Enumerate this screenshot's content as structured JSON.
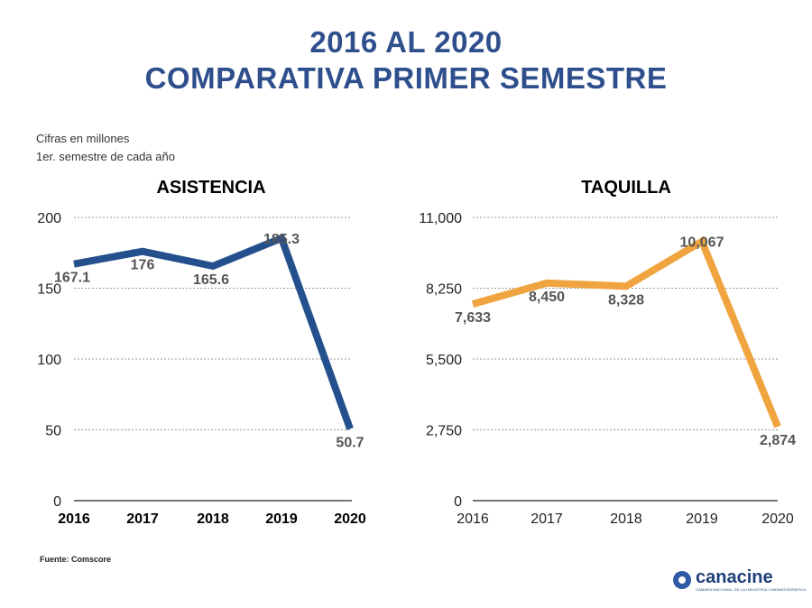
{
  "header": {
    "title_line1": "2016 AL 2020",
    "title_line2": "COMPARATIVA PRIMER SEMESTRE"
  },
  "notes": {
    "line1": "Cifras en millones",
    "line2": "1er. semestre de cada año"
  },
  "footer": {
    "source": "Fuente: Comscore",
    "logo_text": "canacine",
    "logo_subtext": "CÁMARA NACIONAL DE LA INDUSTRIA CINEMATOGRÁFICA"
  },
  "colors": {
    "title": "#2e4f8c",
    "asistencia_line": "#24508e",
    "taquilla_line": "#f0a440",
    "grid": "#999999"
  },
  "chart_data": [
    {
      "type": "line",
      "title": "ASISTENCIA",
      "categories": [
        "2016",
        "2017",
        "2018",
        "2019",
        "2020"
      ],
      "values": [
        167.1,
        176,
        165.6,
        185.3,
        50.7
      ],
      "value_labels": [
        "167.1",
        "176",
        "165.6",
        "185.3",
        "50.7"
      ],
      "ylim": [
        0,
        200
      ],
      "yticks": [
        0,
        50,
        100,
        150,
        200
      ],
      "ytick_labels": [
        "0",
        "50",
        "100",
        "150",
        "200"
      ],
      "grid": true,
      "color": "#24508e",
      "xtick_style": "bold"
    },
    {
      "type": "line",
      "title": "TAQUILLA",
      "categories": [
        "2016",
        "2017",
        "2018",
        "2019",
        "2020"
      ],
      "values": [
        7633,
        8450,
        8328,
        10067,
        2874
      ],
      "value_labels": [
        "7,633",
        "8,450",
        "8,328",
        "10,067",
        "2,874"
      ],
      "ylim": [
        0,
        11000
      ],
      "yticks": [
        0,
        2750,
        5500,
        8250,
        11000
      ],
      "ytick_labels": [
        "0",
        "2,750",
        "5,500",
        "8,250",
        "11,000"
      ],
      "grid": true,
      "color": "#f0a440",
      "xtick_style": "normal"
    }
  ]
}
